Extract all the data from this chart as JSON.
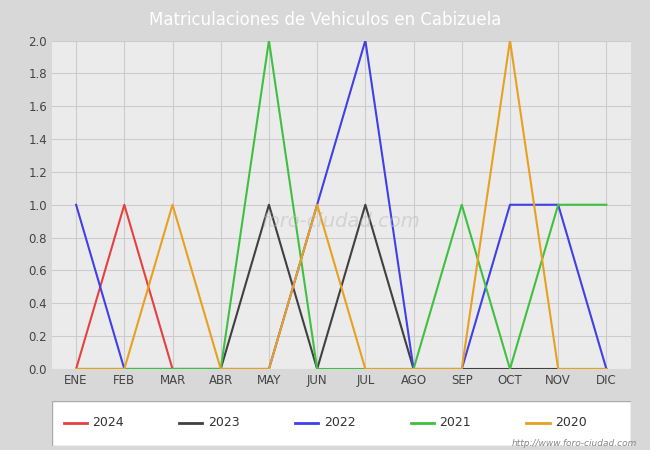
{
  "title": "Matriculaciones de Vehiculos en Cabizuela",
  "months": [
    "ENE",
    "FEB",
    "MAR",
    "ABR",
    "MAY",
    "JUN",
    "JUL",
    "AGO",
    "SEP",
    "OCT",
    "NOV",
    "DIC"
  ],
  "series": {
    "2024": {
      "color": "#e84040",
      "data": [
        0,
        1,
        0,
        0,
        0,
        null,
        null,
        null,
        null,
        null,
        null,
        null
      ]
    },
    "2023": {
      "color": "#404040",
      "data": [
        0,
        0,
        0,
        0,
        1,
        0,
        1,
        0,
        0,
        0,
        0,
        0
      ]
    },
    "2022": {
      "color": "#4040e8",
      "data": [
        1,
        0,
        0,
        0,
        0,
        1,
        2,
        0,
        0,
        1,
        1,
        0
      ]
    },
    "2021": {
      "color": "#40c040",
      "data": [
        0,
        0,
        0,
        0,
        2,
        0,
        0,
        0,
        1,
        0,
        1,
        1
      ]
    },
    "2020": {
      "color": "#e8a020",
      "data": [
        0,
        0,
        1,
        0,
        0,
        1,
        0,
        0,
        0,
        2,
        0,
        0
      ]
    }
  },
  "ylim": [
    0,
    2.0
  ],
  "yticks": [
    0.0,
    0.2,
    0.4,
    0.6,
    0.8,
    1.0,
    1.2,
    1.4,
    1.6,
    1.8,
    2.0
  ],
  "grid_color": "#cccccc",
  "bg_color": "#d8d8d8",
  "plot_bg_color": "#ebebeb",
  "title_bg_color": "#4c72b0",
  "title_text_color": "#ffffff",
  "legend_order": [
    "2024",
    "2023",
    "2022",
    "2021",
    "2020"
  ],
  "watermark": "http://www.foro-ciudad.com",
  "watermark_center": "foro-ciudad.com"
}
